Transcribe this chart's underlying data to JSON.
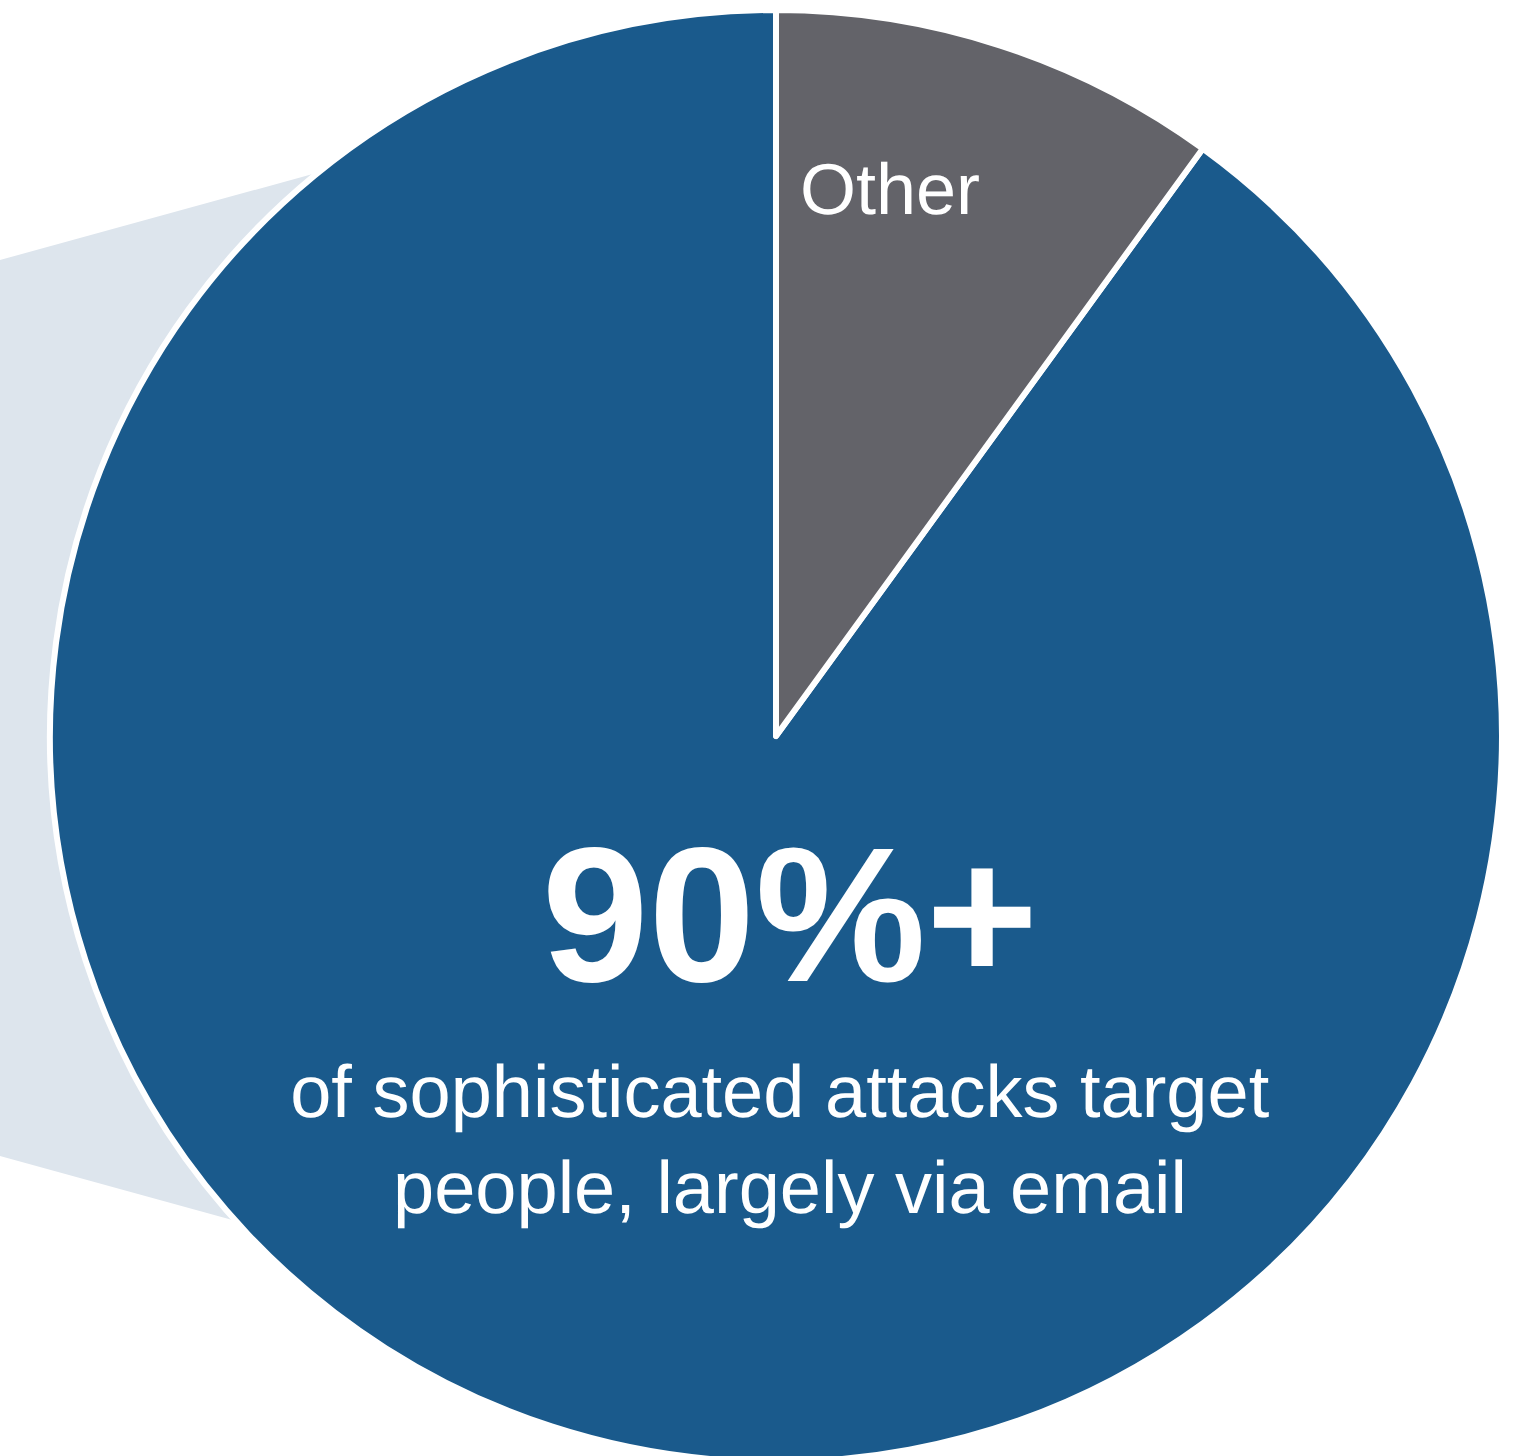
{
  "chart_data": {
    "type": "pie",
    "categories": [
      null,
      "Other"
    ],
    "values": [
      90,
      10
    ],
    "colors": [
      "#1a5a8c",
      "#636369"
    ],
    "value_labels": [
      "90%+",
      null
    ],
    "annotations": [
      "of sophisticated attacks target people, largely via email"
    ]
  }
}
